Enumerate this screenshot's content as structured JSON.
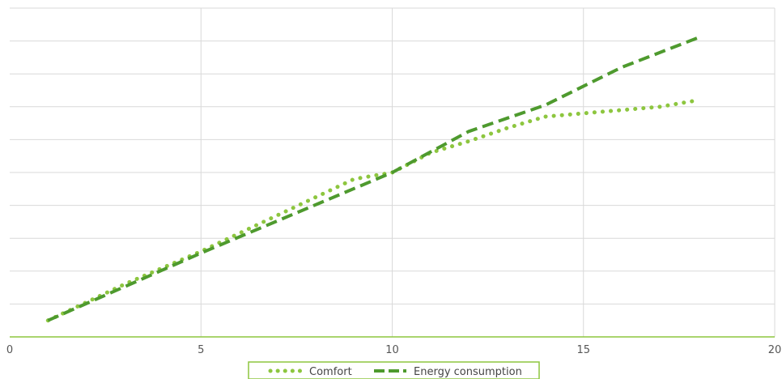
{
  "chart_data": {
    "type": "line",
    "title": "",
    "xlabel": "",
    "ylabel": "",
    "xlim": [
      0,
      20
    ],
    "ylim": [
      0,
      10
    ],
    "x_ticks": [
      0,
      5,
      10,
      15,
      20
    ],
    "x_tick_labels": [
      "0",
      "5",
      "10",
      "15",
      "20"
    ],
    "y_gridlines": [
      1,
      2,
      3,
      4,
      5,
      6,
      7,
      8,
      9,
      10
    ],
    "y_tick_labels_shown": false,
    "grid": true,
    "legend_position": "bottom-center",
    "axis_color": "#8dc63f",
    "grid_color": "#d9d9d9",
    "series": [
      {
        "name": "Comfort",
        "style": "dotted",
        "color": "#8dc63f",
        "x": [
          1,
          3,
          5,
          7,
          9,
          10,
          11,
          12,
          13,
          14,
          15,
          16,
          17,
          18
        ],
        "y": [
          0.5,
          1.6,
          2.6,
          3.7,
          4.8,
          5.0,
          5.6,
          5.95,
          6.35,
          6.7,
          6.8,
          6.9,
          7.0,
          7.2
        ]
      },
      {
        "name": "Energy consumption",
        "style": "dashed",
        "color": "#4e9a2e",
        "x": [
          1,
          5,
          10,
          12,
          14,
          16,
          18
        ],
        "y": [
          0.5,
          2.55,
          5.0,
          6.25,
          7.05,
          8.2,
          9.1
        ]
      }
    ]
  }
}
